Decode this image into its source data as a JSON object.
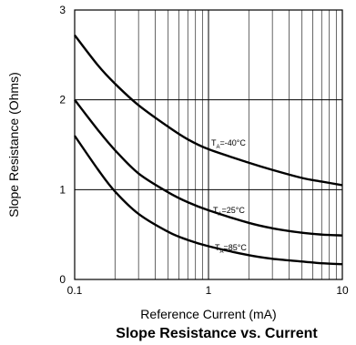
{
  "chart_data": {
    "type": "line",
    "title": "Slope Resistance vs. Current",
    "xlabel": "Reference Current (mA)",
    "ylabel": "Slope Resistance (Ohms)",
    "xscale": "log",
    "xlim": [
      0.1,
      10
    ],
    "ylim": [
      0,
      3
    ],
    "x_ticks": [
      "0.1",
      "1",
      "10"
    ],
    "y_ticks": [
      "0",
      "1",
      "2",
      "3"
    ],
    "grid": true,
    "legend": "none",
    "series": [
      {
        "name": "TA=-40°C",
        "label_main": "T",
        "label_sub": "A",
        "label_rest": "=-40°C",
        "x": [
          0.1,
          0.15,
          0.2,
          0.3,
          0.5,
          0.7,
          1,
          2,
          3,
          5,
          7,
          10
        ],
        "y": [
          2.72,
          2.38,
          2.18,
          1.94,
          1.7,
          1.56,
          1.45,
          1.3,
          1.22,
          1.13,
          1.09,
          1.05
        ]
      },
      {
        "name": "TA=25°C",
        "label_main": "T",
        "label_sub": "A",
        "label_rest": "=25°C",
        "x": [
          0.1,
          0.15,
          0.2,
          0.3,
          0.5,
          0.7,
          1,
          2,
          3,
          5,
          7,
          10
        ],
        "y": [
          2.0,
          1.66,
          1.44,
          1.18,
          0.97,
          0.86,
          0.77,
          0.63,
          0.57,
          0.52,
          0.5,
          0.49
        ]
      },
      {
        "name": "TA=85°C",
        "label_main": "T",
        "label_sub": "A",
        "label_rest": "=85°C",
        "x": [
          0.1,
          0.15,
          0.2,
          0.3,
          0.5,
          0.7,
          1,
          2,
          3,
          5,
          7,
          10
        ],
        "y": [
          1.6,
          1.22,
          0.98,
          0.73,
          0.53,
          0.44,
          0.37,
          0.27,
          0.23,
          0.2,
          0.18,
          0.17
        ]
      }
    ]
  }
}
